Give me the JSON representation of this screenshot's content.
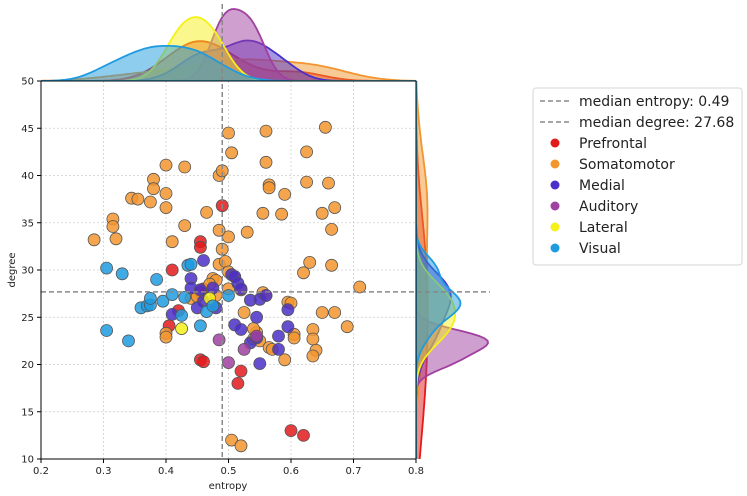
{
  "chart_data": {
    "type": "scatter",
    "title": "",
    "xlabel": "entropy",
    "ylabel": "degree",
    "xlim": [
      0.2,
      0.8
    ],
    "ylim": [
      10,
      50
    ],
    "xticks": [
      "0.2",
      "0.3",
      "0.4",
      "0.5",
      "0.6",
      "0.7",
      "0.8"
    ],
    "yticks": [
      "10",
      "15",
      "20",
      "25",
      "30",
      "35",
      "40",
      "45",
      "50"
    ],
    "grid": true,
    "marginals": "kde density curves on top (entropy) and right (degree) per group",
    "reference_lines": [
      {
        "axis": "x",
        "value": 0.49,
        "label": "median entropy: 0.49",
        "style": "dashed",
        "color": "#888888"
      },
      {
        "axis": "y",
        "value": 27.68,
        "label": "median degree: 27.68",
        "style": "dashed",
        "color": "#888888"
      }
    ],
    "legend_position": "outside-right",
    "series": [
      {
        "name": "Prefrontal",
        "color": "#e31a1c",
        "points": [
          [
            0.41,
            30.0
          ],
          [
            0.455,
            33.0
          ],
          [
            0.455,
            32.4
          ],
          [
            0.49,
            36.8
          ],
          [
            0.46,
            28.0
          ],
          [
            0.455,
            27.6
          ],
          [
            0.42,
            25.7
          ],
          [
            0.405,
            24.1
          ],
          [
            0.455,
            20.5
          ],
          [
            0.46,
            20.3
          ],
          [
            0.52,
            19.3
          ],
          [
            0.515,
            18.0
          ],
          [
            0.6,
            13.0
          ],
          [
            0.62,
            12.5
          ]
        ]
      },
      {
        "name": "Somatomotor",
        "color": "#f2952e",
        "points": [
          [
            0.285,
            33.2
          ],
          [
            0.315,
            35.4
          ],
          [
            0.315,
            34.6
          ],
          [
            0.32,
            33.3
          ],
          [
            0.345,
            37.6
          ],
          [
            0.355,
            37.5
          ],
          [
            0.38,
            39.6
          ],
          [
            0.38,
            38.6
          ],
          [
            0.375,
            37.2
          ],
          [
            0.4,
            41.1
          ],
          [
            0.4,
            38.1
          ],
          [
            0.4,
            36.6
          ],
          [
            0.41,
            33.0
          ],
          [
            0.43,
            40.9
          ],
          [
            0.43,
            34.7
          ],
          [
            0.465,
            36.1
          ],
          [
            0.485,
            40.0
          ],
          [
            0.49,
            40.5
          ],
          [
            0.5,
            44.5
          ],
          [
            0.505,
            42.4
          ],
          [
            0.5,
            33.5
          ],
          [
            0.485,
            34.2
          ],
          [
            0.49,
            32.2
          ],
          [
            0.485,
            30.6
          ],
          [
            0.495,
            30.9
          ],
          [
            0.5,
            29.8
          ],
          [
            0.51,
            29.3
          ],
          [
            0.475,
            29.1
          ],
          [
            0.48,
            28.9
          ],
          [
            0.47,
            28.5
          ],
          [
            0.525,
            25.5
          ],
          [
            0.53,
            34.0
          ],
          [
            0.56,
            44.7
          ],
          [
            0.56,
            41.4
          ],
          [
            0.565,
            39.0
          ],
          [
            0.565,
            38.7
          ],
          [
            0.555,
            36.0
          ],
          [
            0.585,
            35.9
          ],
          [
            0.59,
            38.0
          ],
          [
            0.625,
            42.5
          ],
          [
            0.625,
            39.3
          ],
          [
            0.655,
            45.1
          ],
          [
            0.66,
            39.2
          ],
          [
            0.67,
            36.6
          ],
          [
            0.65,
            36.0
          ],
          [
            0.665,
            34.3
          ],
          [
            0.62,
            29.7
          ],
          [
            0.63,
            30.8
          ],
          [
            0.665,
            30.5
          ],
          [
            0.71,
            28.2
          ],
          [
            0.555,
            27.6
          ],
          [
            0.56,
            27.3
          ],
          [
            0.595,
            26.6
          ],
          [
            0.6,
            26.5
          ],
          [
            0.605,
            23.2
          ],
          [
            0.605,
            22.8
          ],
          [
            0.635,
            23.7
          ],
          [
            0.635,
            22.7
          ],
          [
            0.64,
            21.5
          ],
          [
            0.635,
            20.9
          ],
          [
            0.65,
            25.5
          ],
          [
            0.67,
            25.5
          ],
          [
            0.69,
            24.0
          ],
          [
            0.545,
            23.4
          ],
          [
            0.54,
            22.7
          ],
          [
            0.55,
            22.5
          ],
          [
            0.565,
            21.8
          ],
          [
            0.57,
            21.6
          ],
          [
            0.59,
            20.5
          ],
          [
            0.54,
            23.8
          ],
          [
            0.5,
            28.0
          ],
          [
            0.52,
            27.9
          ],
          [
            0.48,
            27.3
          ],
          [
            0.4,
            23.3
          ],
          [
            0.4,
            22.9
          ],
          [
            0.44,
            27.0
          ],
          [
            0.45,
            27.2
          ],
          [
            0.505,
            12.0
          ],
          [
            0.52,
            11.4
          ]
        ]
      },
      {
        "name": "Medial",
        "color": "#4b2fc9",
        "points": [
          [
            0.44,
            29.1
          ],
          [
            0.44,
            28.1
          ],
          [
            0.455,
            27.9
          ],
          [
            0.475,
            28.1
          ],
          [
            0.46,
            31.0
          ],
          [
            0.505,
            29.5
          ],
          [
            0.51,
            29.3
          ],
          [
            0.515,
            28.6
          ],
          [
            0.52,
            28.0
          ],
          [
            0.535,
            26.8
          ],
          [
            0.55,
            26.9
          ],
          [
            0.56,
            27.3
          ],
          [
            0.545,
            25.0
          ],
          [
            0.51,
            24.2
          ],
          [
            0.52,
            23.7
          ],
          [
            0.535,
            22.3
          ],
          [
            0.545,
            22.8
          ],
          [
            0.55,
            20.1
          ],
          [
            0.58,
            21.6
          ],
          [
            0.58,
            23.0
          ],
          [
            0.595,
            24.0
          ],
          [
            0.595,
            25.8
          ],
          [
            0.48,
            26.0
          ],
          [
            0.46,
            26.7
          ],
          [
            0.41,
            25.3
          ],
          [
            0.45,
            26.0
          ]
        ]
      },
      {
        "name": "Auditory",
        "color": "#a040a0",
        "points": [
          [
            0.485,
            22.6
          ],
          [
            0.5,
            20.2
          ],
          [
            0.525,
            21.6
          ],
          [
            0.545,
            23.0
          ]
        ]
      },
      {
        "name": "Lateral",
        "color": "#f5f019",
        "points": [
          [
            0.47,
            27.0
          ],
          [
            0.425,
            23.8
          ]
        ]
      },
      {
        "name": "Visual",
        "color": "#1f9be0",
        "points": [
          [
            0.305,
            30.2
          ],
          [
            0.305,
            23.6
          ],
          [
            0.33,
            29.6
          ],
          [
            0.34,
            22.5
          ],
          [
            0.36,
            26.0
          ],
          [
            0.37,
            26.2
          ],
          [
            0.375,
            26.3
          ],
          [
            0.375,
            27.0
          ],
          [
            0.385,
            29.0
          ],
          [
            0.395,
            26.7
          ],
          [
            0.41,
            27.4
          ],
          [
            0.425,
            25.2
          ],
          [
            0.43,
            27.1
          ],
          [
            0.435,
            30.5
          ],
          [
            0.44,
            30.6
          ],
          [
            0.455,
            24.1
          ],
          [
            0.465,
            25.6
          ],
          [
            0.475,
            26.2
          ],
          [
            0.5,
            27.3
          ]
        ]
      }
    ]
  }
}
